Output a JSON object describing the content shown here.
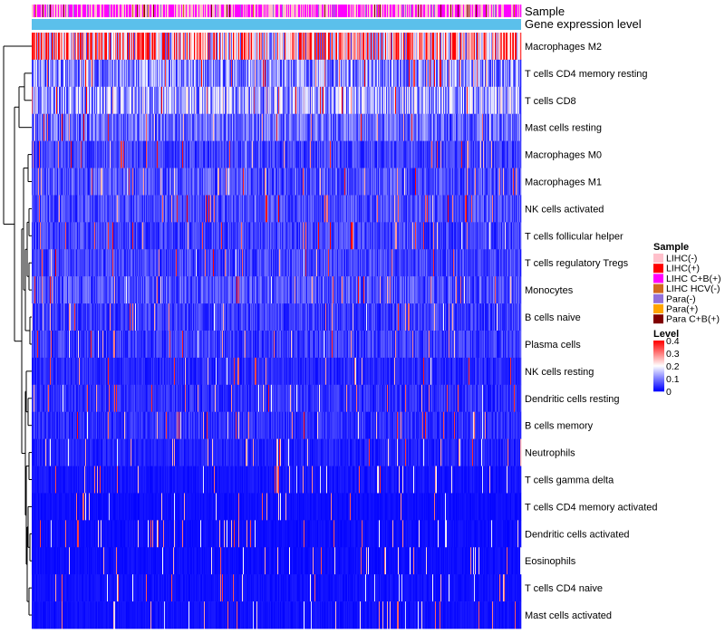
{
  "chart_data": {
    "type": "heatmap",
    "annotation_rows": [
      "Sample",
      "Gene expression level"
    ],
    "rows": [
      "Macrophages M2",
      "T cells CD4 memory resting",
      "T cells CD8",
      "Mast cells resting",
      "Macrophages M0",
      "Macrophages M1",
      "NK cells activated",
      "T cells follicular helper",
      "T cells regulatory  Tregs",
      "Monocytes",
      "B cells naive",
      "Plasma cells",
      "NK cells resting",
      "Dendritic cells resting",
      "B cells memory",
      "Neutrophils",
      "T cells gamma delta",
      "T cells CD4 memory activated",
      "Dendritic cells activated",
      "Eosinophils",
      "T cells CD4 naive",
      "Mast cells activated"
    ],
    "row_mean_levels": [
      0.25,
      0.11,
      0.13,
      0.08,
      0.05,
      0.06,
      0.055,
      0.05,
      0.05,
      0.06,
      0.045,
      0.045,
      0.03,
      0.035,
      0.035,
      0.025,
      0.015,
      0.01,
      0.01,
      0.01,
      0.012,
      0.012
    ],
    "n_samples": 540,
    "sample_legend": {
      "title": "Sample",
      "items": [
        {
          "label": "LIHC(-)",
          "color": "#FFC0CB"
        },
        {
          "label": "LIHC(+)",
          "color": "#FF0000"
        },
        {
          "label": "LIHC C+B(+)",
          "color": "#FF00FF"
        },
        {
          "label": "LIHC HCV(-)",
          "color": "#D2691E"
        },
        {
          "label": "Para(-)",
          "color": "#9370DB"
        },
        {
          "label": "Para(+)",
          "color": "#FFA500"
        },
        {
          "label": "Para C+B(+)",
          "color": "#800000"
        }
      ]
    },
    "level_legend": {
      "title": "Level",
      "ticks": [
        "0.4",
        "0.3",
        "0.2",
        "0.1",
        "0"
      ],
      "tick_values": [
        0.4,
        0.3,
        0.2,
        0.1,
        0
      ],
      "range": [
        0,
        0.4
      ],
      "colors": {
        "low": "#0000FF",
        "mid": "#FFFFFF",
        "high": "#FF0000"
      }
    },
    "gene_expression_color": "#5BC0EB"
  }
}
